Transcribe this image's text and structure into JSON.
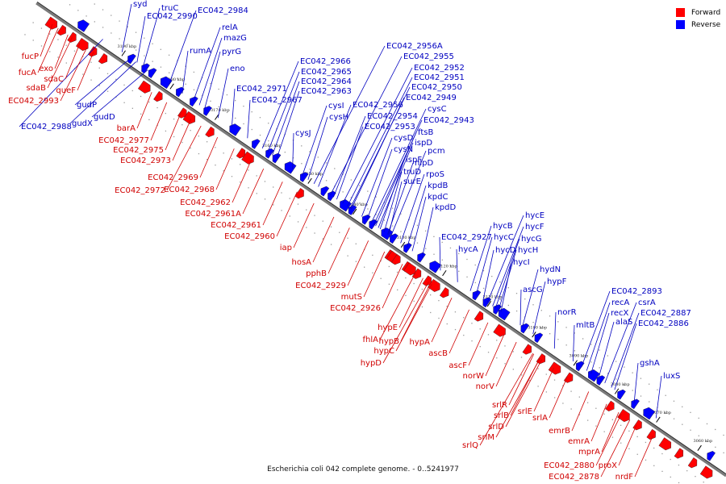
{
  "caption": "Escherichia coli 042 complete genome. - 0..5241977",
  "legend": {
    "forward": {
      "label": "Forward",
      "color": "#ff0000"
    },
    "reverse": {
      "label": "Reverse",
      "color": "#0000ff"
    }
  },
  "colors": {
    "forward_label": "#d00000",
    "reverse_label": "#0000c0",
    "backbone": "#7a7a7a"
  },
  "ticks": [
    "3190 kbp",
    "3180 kbp",
    "3170 kbp",
    "3160 kbp",
    "3150 kbp",
    "3140 kbp",
    "3130 kbp",
    "3120 kbp",
    "3110 kbp",
    "3100 kbp",
    "3090 kbp",
    "3080 kbp",
    "3070 kbp",
    "3060 kbp"
  ],
  "reverse_genes": [
    "syd",
    "truC",
    "EC042_2990",
    "EC042_2984",
    "relA",
    "mazG",
    "rumA",
    "pyrG",
    "eno",
    "EC042_2966",
    "EC042_2965",
    "EC042_2964",
    "EC042_2963",
    "EC042_2971",
    "EC042_2967",
    "EC042_2956A",
    "EC042_2955",
    "EC042_2952",
    "EC042_2951",
    "EC042_2950",
    "EC042_2949",
    "cysI",
    "cysH",
    "cysJ",
    "EC042_2956",
    "EC042_2954",
    "EC042_2953",
    "cysC",
    "EC042_2943",
    "ftsB",
    "ispD",
    "cysD",
    "cysN",
    "pcm",
    "ispF",
    "nlpD",
    "truD",
    "rpoS",
    "surE",
    "kpdB",
    "kpdC",
    "kpdD",
    "gudP",
    "gudX",
    "gudD",
    "EC042_2988",
    "EC042_2927",
    "hycB",
    "hycA",
    "hycE",
    "hycF",
    "hycC",
    "hycG",
    "hycD",
    "hycH",
    "hycI",
    "hydN",
    "hypF",
    "ascG",
    "norR",
    "mltB",
    "EC042_2893",
    "recA",
    "csrA",
    "recX",
    "EC042_2887",
    "alaS",
    "EC042_2886",
    "gshA",
    "luxS"
  ],
  "forward_genes": [
    "fucP",
    "exo",
    "fucA",
    "sdaC",
    "sdaB",
    "queF",
    "EC042_2993",
    "barA",
    "EC042_2977",
    "EC042_2975",
    "EC042_2973",
    "EC042_2969",
    "EC042_2972",
    "EC042_2968",
    "EC042_2962",
    "EC042_2961A",
    "EC042_2961",
    "EC042_2960",
    "iap",
    "hosA",
    "pphB",
    "EC042_2929",
    "mutS",
    "EC042_2926",
    "hypE",
    "fhlA",
    "hypB",
    "hypA",
    "hypC",
    "hypD",
    "ascB",
    "ascF",
    "norW",
    "norV",
    "srlR",
    "srlB",
    "srlE",
    "srlA",
    "srlD",
    "srlM",
    "srlQ",
    "emrB",
    "emrA",
    "mprA",
    "EC042_2880",
    "proX",
    "EC042_2878",
    "nrdF"
  ]
}
